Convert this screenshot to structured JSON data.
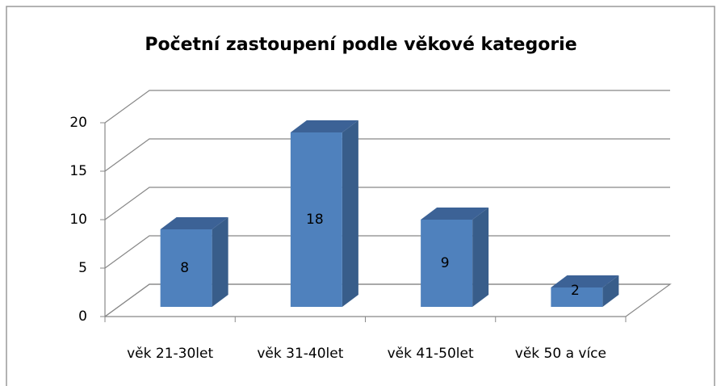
{
  "chart_data": {
    "type": "bar3d",
    "title": "Početní zastoupení podle věkové kategorie",
    "categories": [
      "věk 21-30let",
      "věk 31-40let",
      "věk 41-50let",
      "věk 50 a více"
    ],
    "values": [
      8,
      18,
      9,
      2
    ],
    "color": "#4f81bd",
    "ylim": [
      0,
      20
    ],
    "yticks": [
      0,
      5,
      10,
      15,
      20
    ],
    "grid": true
  }
}
